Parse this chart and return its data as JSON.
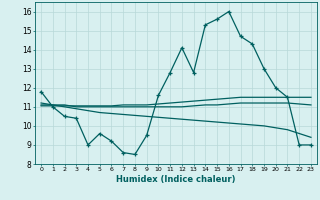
{
  "xlabel": "Humidex (Indice chaleur)",
  "ylabel": "",
  "x_values": [
    0,
    1,
    2,
    3,
    4,
    5,
    6,
    7,
    8,
    9,
    10,
    11,
    12,
    13,
    14,
    15,
    16,
    17,
    18,
    19,
    20,
    21,
    22,
    23
  ],
  "main_line": [
    11.8,
    11.0,
    10.5,
    10.4,
    9.0,
    9.6,
    9.2,
    8.6,
    8.5,
    9.5,
    11.6,
    12.8,
    14.1,
    12.8,
    15.3,
    15.6,
    16.0,
    14.7,
    14.3,
    13.0,
    12.0,
    11.5,
    9.0,
    9.0
  ],
  "trend1": [
    11.05,
    11.05,
    11.05,
    11.05,
    11.05,
    11.05,
    11.05,
    11.1,
    11.1,
    11.1,
    11.15,
    11.2,
    11.25,
    11.3,
    11.35,
    11.4,
    11.45,
    11.5,
    11.5,
    11.5,
    11.5,
    11.5,
    11.5,
    11.5
  ],
  "trend2": [
    11.1,
    11.1,
    11.1,
    11.0,
    11.0,
    11.0,
    11.0,
    11.0,
    11.0,
    11.0,
    11.0,
    11.0,
    11.0,
    11.05,
    11.1,
    11.1,
    11.15,
    11.2,
    11.2,
    11.2,
    11.2,
    11.2,
    11.15,
    11.1
  ],
  "trend3": [
    11.2,
    11.1,
    11.0,
    10.9,
    10.8,
    10.7,
    10.65,
    10.6,
    10.55,
    10.5,
    10.45,
    10.4,
    10.35,
    10.3,
    10.25,
    10.2,
    10.15,
    10.1,
    10.05,
    10.0,
    9.9,
    9.8,
    9.6,
    9.4
  ],
  "line_color": "#006060",
  "bg_color": "#d8f0f0",
  "grid_color": "#b8d8d8",
  "ylim": [
    8,
    16.5
  ],
  "yticks": [
    8,
    9,
    10,
    11,
    12,
    13,
    14,
    15,
    16
  ],
  "xticks": [
    0,
    1,
    2,
    3,
    4,
    5,
    6,
    7,
    8,
    9,
    10,
    11,
    12,
    13,
    14,
    15,
    16,
    17,
    18,
    19,
    20,
    21,
    22,
    23
  ]
}
